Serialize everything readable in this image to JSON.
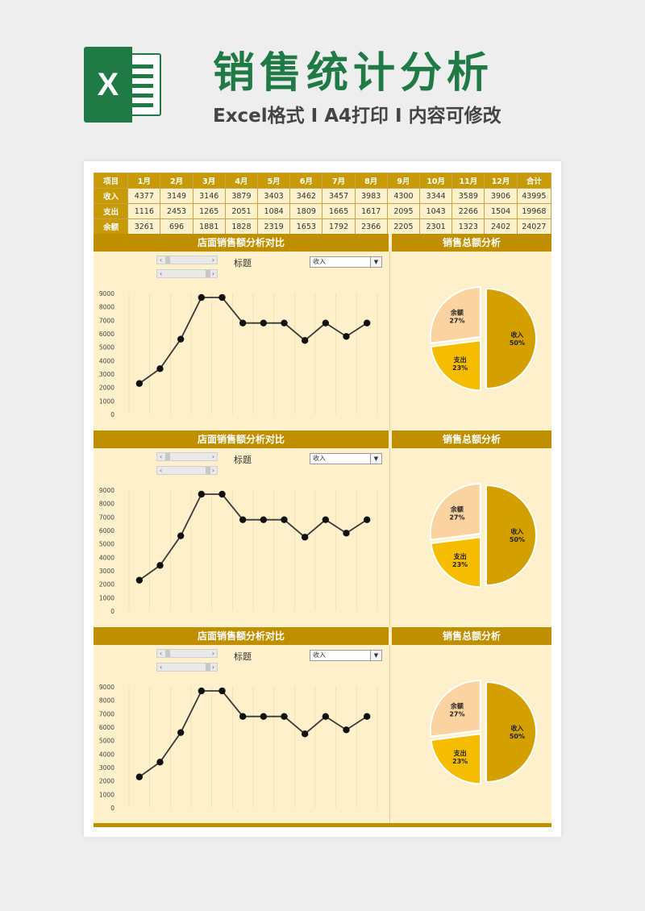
{
  "header": {
    "title": "销售统计分析",
    "subtitle": "Excel格式 I A4打印 I 内容可修改",
    "logo_letter": "X"
  },
  "table": {
    "columns": [
      "项目",
      "1月",
      "2月",
      "3月",
      "4月",
      "5月",
      "6月",
      "7月",
      "8月",
      "9月",
      "10月",
      "11月",
      "12月",
      "合计"
    ],
    "rows": [
      {
        "label": "收入",
        "values": [
          "4377",
          "3149",
          "3146",
          "3879",
          "3403",
          "3462",
          "3457",
          "3983",
          "4300",
          "3344",
          "3589",
          "3906",
          "43995"
        ]
      },
      {
        "label": "支出",
        "values": [
          "1116",
          "2453",
          "1265",
          "2051",
          "1084",
          "1809",
          "1665",
          "1617",
          "2095",
          "1043",
          "2266",
          "1504",
          "19968"
        ]
      },
      {
        "label": "余额",
        "values": [
          "3261",
          "696",
          "1881",
          "1828",
          "2319",
          "1653",
          "1792",
          "2366",
          "2205",
          "2301",
          "1323",
          "2402",
          "24027"
        ]
      }
    ]
  },
  "panels": [
    {
      "line_title": "店面销售额分析对比",
      "pie_title": "销售总额分析",
      "label": "标题",
      "select_value": "收入"
    },
    {
      "line_title": "店面销售额分析对比",
      "pie_title": "销售总额分析",
      "label": "标题",
      "select_value": "收入"
    },
    {
      "line_title": "店面销售额分析对比",
      "pie_title": "销售总额分析",
      "label": "标题",
      "select_value": "收入"
    }
  ],
  "colors": {
    "accent": "#c08f00",
    "panel_bg": "#fdf0cb",
    "title_green": "#1f7a45",
    "pie_income": "#d4a000",
    "pie_expense": "#f6bd00",
    "pie_balance": "#fbd3a0"
  },
  "chart_data": [
    {
      "type": "line",
      "y_ticks": [
        0,
        1000,
        2000,
        3000,
        4000,
        5000,
        6000,
        7000,
        8000,
        9000
      ],
      "ylim": [
        0,
        9000
      ],
      "values": [
        2300,
        3400,
        5600,
        8700,
        8700,
        6800,
        6800,
        6800,
        5500,
        6800,
        5800,
        6800
      ]
    },
    {
      "type": "pie",
      "slices": [
        {
          "label": "收入",
          "percent": "50%",
          "value": 50
        },
        {
          "label": "支出",
          "percent": "23%",
          "value": 23
        },
        {
          "label": "余额",
          "percent": "27%",
          "value": 27
        }
      ]
    }
  ]
}
